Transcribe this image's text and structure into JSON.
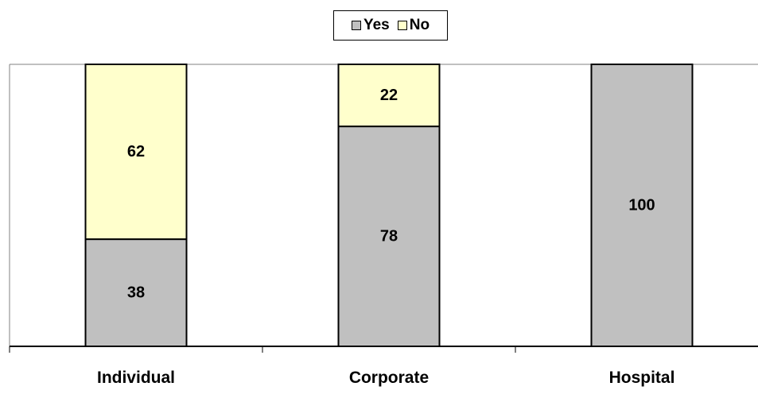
{
  "chart_data": {
    "type": "bar",
    "stacked": true,
    "categories": [
      "Individual",
      "Corporate",
      "Hospital"
    ],
    "series": [
      {
        "name": "Yes",
        "values": [
          38,
          78,
          100
        ],
        "color": "#c0c0c0"
      },
      {
        "name": "No",
        "values": [
          62,
          22,
          0
        ],
        "color": "#ffffcc"
      }
    ],
    "ylim": [
      0,
      100
    ],
    "title": "",
    "xlabel": "",
    "ylabel": "",
    "legend": "top-center",
    "grid": false
  },
  "legend": {
    "yes_label": "Yes",
    "no_label": "No"
  }
}
